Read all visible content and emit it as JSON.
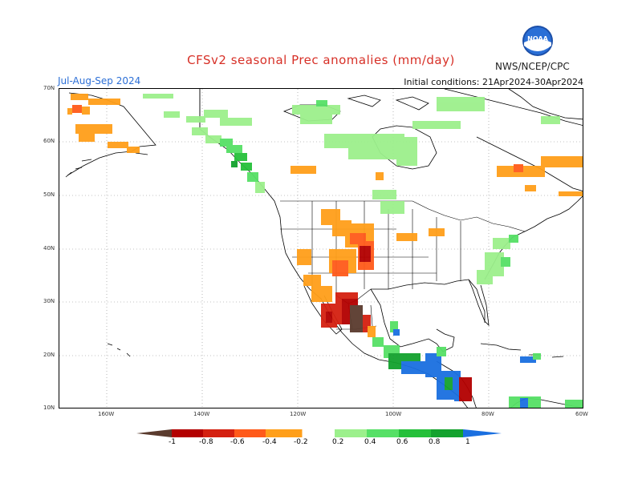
{
  "header": {
    "title": "CFSv2 seasonal Prec anomalies (mm/day)",
    "season": "Jul-Aug-Sep 2024",
    "initial_conditions": "Initial conditions: 21Apr2024-30Apr2024",
    "agency": "NWS/NCEP/CPC",
    "logo_text": "NOAA"
  },
  "axes": {
    "lat_labels": [
      "70N",
      "60N",
      "50N",
      "40N",
      "30N",
      "20N",
      "10N"
    ],
    "lon_labels": [
      "160W",
      "140W",
      "120W",
      "100W",
      "80W",
      "60W"
    ]
  },
  "colorbar": {
    "labels": [
      "-1",
      "-0.8",
      "-0.6",
      "-0.4",
      "-0.2",
      "0.2",
      "0.4",
      "0.6",
      "0.8",
      "1"
    ],
    "colors": [
      "#5a3b2e",
      "#b30000",
      "#d42010",
      "#ff5a1a",
      "#ff9f1a",
      "#ffffff",
      "#9cf08c",
      "#56e066",
      "#25c03a",
      "#14a22e",
      "#1a6fe0"
    ]
  },
  "colors": {
    "title": "#d73027",
    "season": "#2c6fd6",
    "map_border": "#000000"
  }
}
